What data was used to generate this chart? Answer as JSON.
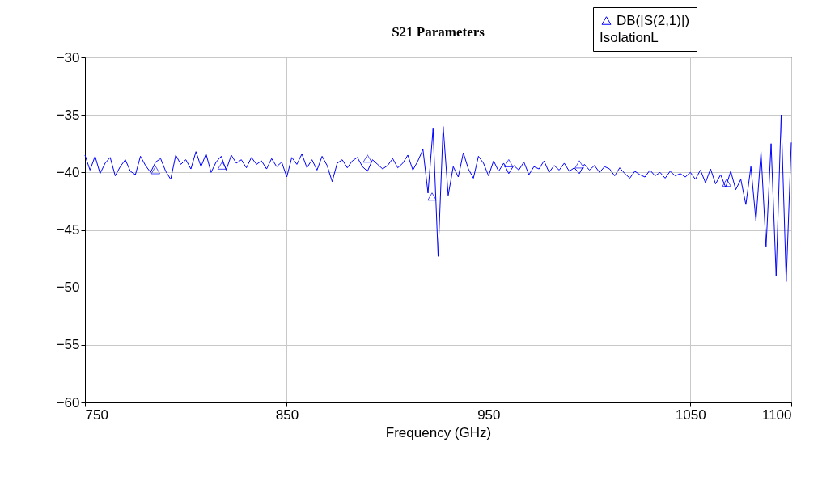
{
  "chart_data": {
    "type": "line",
    "title": "S21 Parameters",
    "xlabel": "Frequency (GHz)",
    "legend_title": "IsolationL",
    "legend": "top right",
    "grid": true,
    "line_style": "solid",
    "xlim": [
      750,
      1100
    ],
    "xticks": [
      750,
      850,
      950,
      1050,
      1100
    ],
    "ylim": [
      -60,
      -30
    ],
    "yticks": [
      -60,
      -55,
      -50,
      -45,
      -40,
      -35,
      -30
    ],
    "series": [
      {
        "name": "DB(|S(2,1)|)",
        "color": "#0000ff",
        "x": [
          750,
          752.5,
          755,
          757.5,
          760,
          762.5,
          765,
          767.5,
          770,
          772.5,
          775,
          777.5,
          780,
          782.5,
          785,
          787.5,
          790,
          792.5,
          795,
          797.5,
          800,
          802.5,
          805,
          807.5,
          810,
          812.5,
          815,
          817.5,
          820,
          822.5,
          825,
          827.5,
          830,
          832.5,
          835,
          837.5,
          840,
          842.5,
          845,
          847.5,
          850,
          852.5,
          855,
          857.5,
          860,
          862.5,
          865,
          867.5,
          870,
          872.5,
          875,
          877.5,
          880,
          882.5,
          885,
          887.5,
          890,
          892.5,
          895,
          897.5,
          900,
          902.5,
          905,
          907.5,
          910,
          912.5,
          915,
          917.5,
          920,
          922.5,
          925,
          927.5,
          930,
          932.5,
          935,
          937.5,
          940,
          942.5,
          945,
          947.5,
          950,
          952.5,
          955,
          957.5,
          960,
          962.5,
          965,
          967.5,
          970,
          972.5,
          975,
          977.5,
          980,
          982.5,
          985,
          987.5,
          990,
          992.5,
          995,
          997.5,
          1000,
          1002.5,
          1005,
          1007.5,
          1010,
          1012.5,
          1015,
          1017.5,
          1020,
          1022.5,
          1025,
          1027.5,
          1030,
          1032.5,
          1035,
          1037.5,
          1040,
          1042.5,
          1045,
          1047.5,
          1050,
          1052.5,
          1055,
          1057.5,
          1060,
          1062.5,
          1065,
          1067.5,
          1070,
          1072.5,
          1075,
          1077.5,
          1080,
          1082.5,
          1085,
          1087.5,
          1090,
          1092.5,
          1095,
          1097.5,
          1100
        ],
        "values": [
          -38.5,
          -39.8,
          -38.6,
          -40.1,
          -39.2,
          -38.7,
          -40.3,
          -39.5,
          -38.9,
          -39.9,
          -40.2,
          -38.6,
          -39.4,
          -40.0,
          -39.1,
          -38.8,
          -39.9,
          -40.6,
          -38.5,
          -39.3,
          -38.9,
          -39.7,
          -38.2,
          -39.5,
          -38.4,
          -40.0,
          -39.1,
          -38.6,
          -39.8,
          -38.5,
          -39.2,
          -38.9,
          -39.6,
          -38.7,
          -39.3,
          -39.0,
          -39.7,
          -38.8,
          -39.5,
          -39.1,
          -40.4,
          -38.7,
          -39.3,
          -38.4,
          -39.6,
          -38.9,
          -39.8,
          -38.6,
          -39.4,
          -40.8,
          -39.2,
          -38.9,
          -39.6,
          -39.0,
          -38.7,
          -39.5,
          -39.9,
          -38.9,
          -39.3,
          -39.7,
          -39.4,
          -38.8,
          -39.6,
          -39.2,
          -38.5,
          -39.8,
          -39.0,
          -38.0,
          -41.8,
          -36.2,
          -47.3,
          -36.0,
          -42.0,
          -39.5,
          -40.4,
          -38.3,
          -39.7,
          -40.5,
          -38.6,
          -39.2,
          -40.3,
          -39.0,
          -39.9,
          -39.2,
          -40.1,
          -39.4,
          -39.8,
          -39.1,
          -40.2,
          -39.5,
          -39.7,
          -39.0,
          -40.0,
          -39.4,
          -39.8,
          -39.2,
          -39.9,
          -39.6,
          -40.1,
          -39.3,
          -39.8,
          -39.4,
          -40.0,
          -39.5,
          -39.7,
          -40.3,
          -39.6,
          -40.1,
          -40.5,
          -39.9,
          -40.2,
          -40.4,
          -39.8,
          -40.3,
          -40.0,
          -40.5,
          -39.9,
          -40.3,
          -40.1,
          -40.4,
          -40.0,
          -40.6,
          -39.8,
          -40.9,
          -39.7,
          -41.0,
          -40.2,
          -41.3,
          -39.9,
          -41.5,
          -40.6,
          -42.8,
          -39.5,
          -44.2,
          -38.2,
          -46.5,
          -37.5,
          -49.0,
          -35.0,
          -49.5,
          -37.4
        ]
      },
      {
        "type": "scatter",
        "marker": "triangle",
        "color": "#0000ff",
        "x": [
          785,
          818,
          890,
          922,
          960,
          995,
          1068
        ],
        "values": [
          -39.8,
          -39.4,
          -38.8,
          -42.1,
          -39.2,
          -39.3,
          -40.9
        ]
      }
    ]
  }
}
